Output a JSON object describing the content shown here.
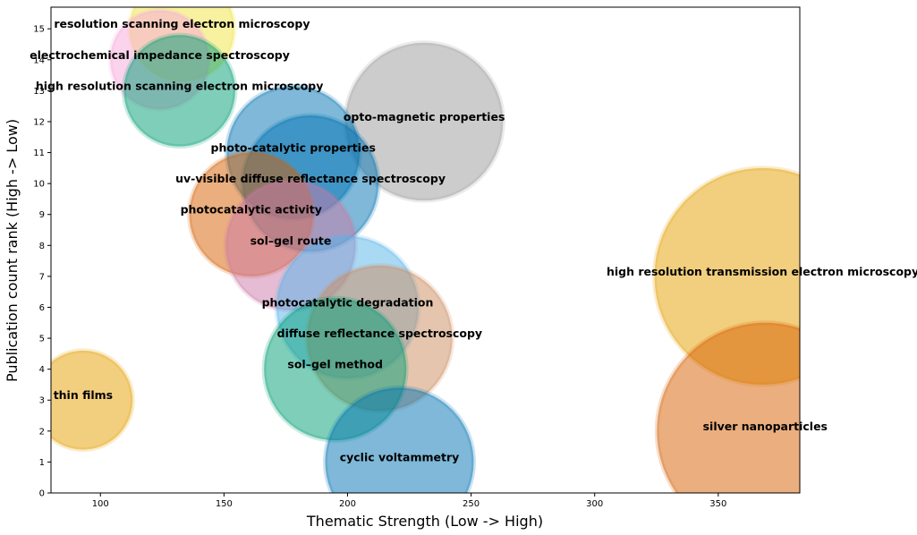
{
  "chart_data": {
    "type": "scatter",
    "variant": "bubble",
    "title": "",
    "xlabel": "Thematic Strength (Low -> High)",
    "ylabel": "Publication count rank (High -> Low)",
    "xlim": [
      80,
      383
    ],
    "ylim": [
      0,
      15.7
    ],
    "xticks": [
      100,
      150,
      200,
      250,
      300,
      350
    ],
    "yticks": [
      0,
      1,
      2,
      3,
      4,
      5,
      6,
      7,
      8,
      9,
      10,
      11,
      12,
      13,
      14,
      15
    ],
    "grid": false,
    "legend": "none",
    "points": [
      {
        "label": "resolution scanning electron microscopy",
        "x": 133,
        "y": 15,
        "size": 1.7,
        "color": "#f0e442"
      },
      {
        "label": "electrochemical impedance spectroscopy",
        "x": 124,
        "y": 14,
        "size": 1.6,
        "color": "#f7a8dc"
      },
      {
        "label": "high resolution scanning electron microscopy",
        "x": 132,
        "y": 13,
        "size": 1.8,
        "color": "#009e73"
      },
      {
        "label": "opto-magnetic properties",
        "x": 231,
        "y": 12,
        "size": 2.55,
        "color": "#999999"
      },
      {
        "label": "photo-catalytic properties",
        "x": 178,
        "y": 11,
        "size": 2.15,
        "color": "#0072b2"
      },
      {
        "label": "uv-visible diffuse reflectance spectroscopy",
        "x": 185,
        "y": 10,
        "size": 2.2,
        "color": "#0072b2"
      },
      {
        "label": "photocatalytic activity",
        "x": 161,
        "y": 9,
        "size": 2.0,
        "color": "#d55e00"
      },
      {
        "label": "sol–gel route",
        "x": 177,
        "y": 8,
        "size": 2.1,
        "color": "#cc79a7"
      },
      {
        "label": "high resolution transmission electron microscopy",
        "x": 368,
        "y": 7,
        "size": 3.5,
        "color": "#e69f00"
      },
      {
        "label": "photocatalytic degradation",
        "x": 200,
        "y": 6,
        "size": 2.3,
        "color": "#56b4e9"
      },
      {
        "label": "diffuse reflectance spectroscopy",
        "x": 213,
        "y": 5,
        "size": 2.35,
        "color": "#cc8c5e"
      },
      {
        "label": "sol–gel method",
        "x": 195,
        "y": 4,
        "size": 2.3,
        "color": "#009e73"
      },
      {
        "label": "thin films",
        "x": 93,
        "y": 3,
        "size": 1.6,
        "color": "#e69f00"
      },
      {
        "label": "silver nanoparticles",
        "x": 369,
        "y": 2,
        "size": 3.5,
        "color": "#d55e00"
      },
      {
        "label": "cyclic voltammetry",
        "x": 221,
        "y": 1,
        "size": 2.4,
        "color": "#0072b2"
      }
    ]
  }
}
